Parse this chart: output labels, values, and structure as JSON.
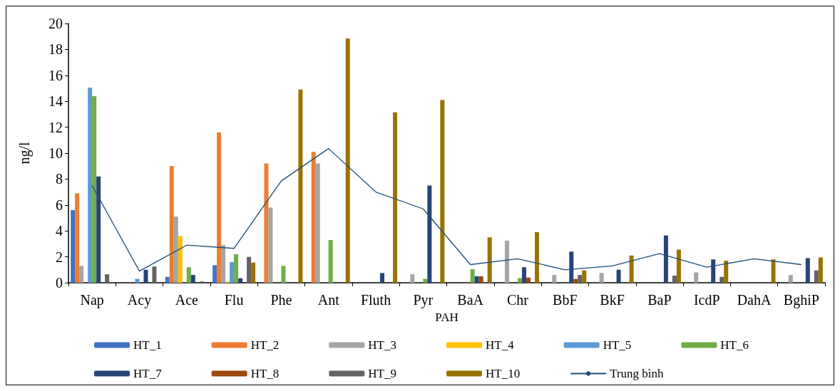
{
  "chart_data": {
    "type": "bar",
    "xlabel": "PAH",
    "ylabel": "ng/l",
    "categories": [
      "Nap",
      "Acy",
      "Ace",
      "Flu",
      "Phe",
      "Ant",
      "Fluth",
      "Pyr",
      "BaA",
      "Chr",
      "BbF",
      "BkF",
      "BaP",
      "IcdP",
      "DahA",
      "BghiP"
    ],
    "series": [
      {
        "name": "HT_1",
        "color": "#4472c4",
        "values": [
          5.6,
          null,
          0.45,
          1.35,
          null,
          null,
          null,
          null,
          null,
          null,
          null,
          null,
          null,
          null,
          null,
          null
        ]
      },
      {
        "name": "HT_2",
        "color": "#ed7d31",
        "values": [
          6.9,
          null,
          9.0,
          11.6,
          9.2,
          10.1,
          null,
          null,
          null,
          null,
          null,
          null,
          null,
          null,
          null,
          null
        ]
      },
      {
        "name": "HT_3",
        "color": "#a5a5a5",
        "values": [
          1.3,
          null,
          5.1,
          2.9,
          5.8,
          9.2,
          null,
          0.65,
          null,
          3.25,
          0.6,
          0.75,
          null,
          0.8,
          null,
          0.6
        ]
      },
      {
        "name": "HT_4",
        "color": "#ffc000",
        "values": [
          null,
          null,
          3.6,
          0.05,
          null,
          null,
          null,
          null,
          null,
          null,
          null,
          null,
          null,
          null,
          null,
          null
        ]
      },
      {
        "name": "HT_5",
        "color": "#5b9bd5",
        "values": [
          15.05,
          0.3,
          null,
          1.6,
          null,
          null,
          null,
          null,
          null,
          null,
          null,
          null,
          null,
          null,
          null,
          null
        ]
      },
      {
        "name": "HT_6",
        "color": "#70ad47",
        "values": [
          14.4,
          null,
          1.2,
          2.2,
          1.3,
          3.3,
          null,
          0.3,
          1.05,
          0.35,
          null,
          null,
          null,
          null,
          null,
          null
        ]
      },
      {
        "name": "HT_7",
        "color": "#264478",
        "values": [
          8.2,
          1.0,
          0.6,
          0.35,
          null,
          null,
          0.75,
          7.5,
          0.5,
          1.2,
          2.4,
          1.0,
          3.65,
          1.8,
          null,
          1.9
        ]
      },
      {
        "name": "HT_8",
        "color": "#9e480e",
        "values": [
          null,
          null,
          null,
          null,
          null,
          null,
          null,
          null,
          0.5,
          0.4,
          0.3,
          null,
          null,
          null,
          null,
          null
        ]
      },
      {
        "name": "HT_9",
        "color": "#636363",
        "values": [
          0.65,
          1.25,
          0.1,
          2.0,
          null,
          null,
          null,
          null,
          null,
          null,
          0.6,
          null,
          0.55,
          0.45,
          null,
          0.95
        ]
      },
      {
        "name": "HT_10",
        "color": "#997300",
        "values": [
          null,
          null,
          null,
          1.55,
          14.9,
          18.85,
          13.15,
          14.1,
          3.5,
          3.9,
          0.95,
          2.1,
          2.55,
          1.7,
          1.8,
          1.95
        ]
      },
      {
        "name": "Trung bình",
        "type": "line",
        "color": "#1f4e79",
        "values": [
          7.5,
          0.9,
          2.9,
          2.65,
          7.85,
          10.35,
          7.0,
          5.7,
          1.4,
          1.85,
          1.0,
          1.3,
          2.25,
          1.2,
          1.85,
          1.4
        ]
      }
    ],
    "ylim": [
      0,
      20
    ],
    "yticks": [
      0,
      2,
      4,
      6,
      8,
      10,
      12,
      14,
      16,
      18,
      20
    ],
    "grid": false,
    "legend": "bottom",
    "marker": "none"
  }
}
